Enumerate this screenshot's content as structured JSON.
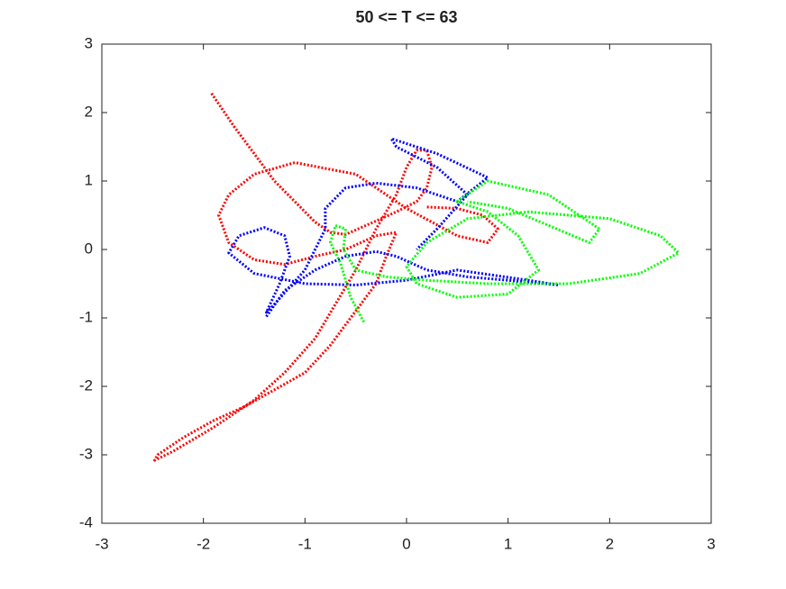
{
  "chart_data": {
    "type": "line",
    "title": "50 <= T <= 63",
    "xlim": [
      -3,
      3
    ],
    "ylim": [
      -4,
      3
    ],
    "xticks": [
      -3,
      -2,
      -1,
      0,
      1,
      2,
      3
    ],
    "yticks": [
      -4,
      -3,
      -2,
      -1,
      0,
      1,
      2,
      3
    ],
    "series": [
      {
        "color": "#ff0000",
        "x": [
          -1.92,
          -1.7,
          -1.5,
          -1.3,
          -1.1,
          -0.9,
          -0.75,
          -0.6,
          -0.4,
          -0.1,
          0.1,
          0.2,
          0.25,
          0.2,
          0.1,
          0.0,
          -0.1,
          -0.3,
          -0.5,
          -0.7,
          -0.9,
          -1.2,
          -1.5,
          -1.9,
          -2.3,
          -2.48,
          -2.45,
          -2.2,
          -1.9,
          -1.6,
          -1.3,
          -1.0,
          -0.75,
          -0.55,
          -0.3,
          -0.2,
          -0.1,
          -0.3,
          -0.6,
          -0.9,
          -1.2,
          -1.5,
          -1.75,
          -1.85,
          -1.75,
          -1.5,
          -1.1,
          -0.5,
          0.0,
          0.5,
          0.8,
          0.9,
          0.75,
          0.5,
          0.2
        ],
        "values": [
          2.28,
          1.8,
          1.4,
          1.0,
          0.7,
          0.4,
          0.25,
          0.22,
          0.35,
          0.55,
          0.7,
          0.9,
          1.2,
          1.45,
          1.45,
          1.2,
          0.8,
          0.3,
          -0.3,
          -0.8,
          -1.3,
          -1.8,
          -2.2,
          -2.6,
          -2.95,
          -3.08,
          -3.0,
          -2.75,
          -2.5,
          -2.3,
          -2.05,
          -1.8,
          -1.4,
          -1.0,
          -0.5,
          -0.1,
          0.25,
          0.2,
          0.0,
          -0.1,
          -0.22,
          -0.15,
          0.1,
          0.5,
          0.8,
          1.1,
          1.27,
          1.1,
          0.6,
          0.2,
          0.1,
          0.3,
          0.5,
          0.6,
          0.62
        ]
      },
      {
        "color": "#0000ff",
        "x": [
          -1.38,
          -1.2,
          -0.9,
          -0.6,
          -0.3,
          -0.1,
          0.2,
          0.6,
          1.0,
          1.5,
          1.2,
          0.5,
          0.0,
          -0.5,
          -1.0,
          -1.5,
          -1.75,
          -1.65,
          -1.4,
          -1.2,
          -1.15,
          -1.25,
          -1.38,
          -1.3,
          -1.0,
          -0.8,
          -0.8,
          -0.6,
          -0.3,
          0.1,
          0.5,
          0.8,
          0.3,
          -0.15,
          -0.1,
          0.3,
          0.6,
          0.3,
          0.1
        ],
        "values": [
          -0.98,
          -0.6,
          -0.3,
          -0.1,
          -0.03,
          -0.1,
          -0.3,
          -0.4,
          -0.45,
          -0.52,
          -0.45,
          -0.3,
          -0.45,
          -0.52,
          -0.5,
          -0.35,
          -0.05,
          0.2,
          0.32,
          0.2,
          -0.1,
          -0.5,
          -0.92,
          -0.8,
          -0.3,
          0.3,
          0.6,
          0.9,
          0.97,
          0.9,
          0.7,
          1.05,
          1.4,
          1.62,
          1.5,
          1.2,
          0.8,
          0.3,
          0.0
        ]
      },
      {
        "color": "#00ff00",
        "x": [
          -0.42,
          -0.55,
          -0.65,
          -0.75,
          -0.7,
          -0.6,
          -0.62,
          -0.5,
          -0.2,
          0.2,
          0.8,
          1.6,
          2.3,
          2.68,
          2.5,
          2.0,
          1.2,
          0.6,
          0.2,
          0.0,
          0.1,
          0.5,
          1.0,
          1.3,
          1.1,
          0.8,
          0.5,
          0.8,
          1.4,
          1.9,
          1.8,
          1.4,
          1.0,
          0.6
        ],
        "values": [
          -1.06,
          -0.7,
          -0.2,
          0.1,
          0.35,
          0.3,
          0.0,
          -0.3,
          -0.4,
          -0.45,
          -0.5,
          -0.5,
          -0.35,
          -0.05,
          0.2,
          0.45,
          0.55,
          0.45,
          0.1,
          -0.25,
          -0.5,
          -0.7,
          -0.65,
          -0.3,
          0.2,
          0.55,
          0.7,
          1.0,
          0.8,
          0.3,
          0.1,
          0.35,
          0.6,
          0.7
        ]
      }
    ]
  }
}
